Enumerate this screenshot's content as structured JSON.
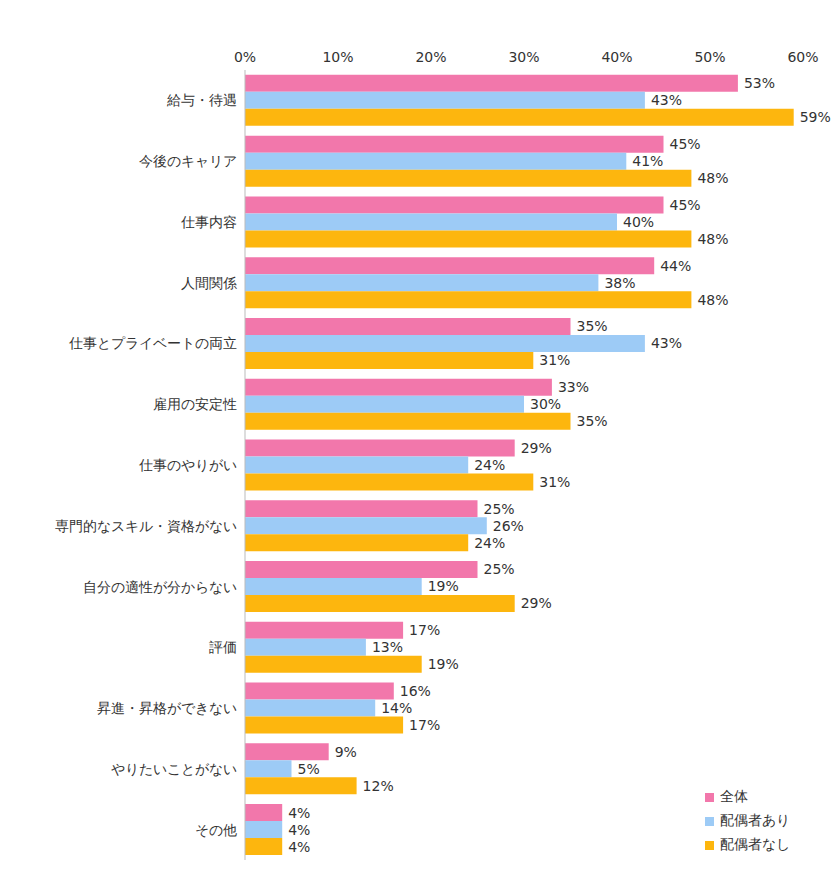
{
  "chart_data": {
    "type": "bar",
    "orientation": "horizontal",
    "categories": [
      "給与・待遇",
      "今後のキャリア",
      "仕事内容",
      "人間関係",
      "仕事とプライベートの両立",
      "雇用の安定性",
      "仕事のやりがい",
      "専門的なスキル・資格がない",
      "自分の適性が分からない",
      "評価",
      "昇進・昇格ができない",
      "やりたいことがない",
      "その他"
    ],
    "series": [
      {
        "name": "全体",
        "color": "#F277AB",
        "values": [
          53,
          45,
          45,
          44,
          35,
          33,
          29,
          25,
          25,
          17,
          16,
          9,
          4
        ],
        "value_labels": [
          "53%",
          "45%",
          "45%",
          "44%",
          "35%",
          "33%",
          "29%",
          "25%",
          "25%",
          "17%",
          "16%",
          "9%",
          "4%"
        ]
      },
      {
        "name": "配偶者あり",
        "color": "#9DCBF6",
        "values": [
          43,
          41,
          40,
          38,
          43,
          30,
          24,
          26,
          19,
          13,
          14,
          5,
          4
        ],
        "value_labels": [
          "43%",
          "41%",
          "40%",
          "38%",
          "43%",
          "30%",
          "24%",
          "26%",
          "19%",
          "13%",
          "14%",
          "5%",
          "4%"
        ]
      },
      {
        "name": "配偶者なし",
        "color": "#FDB60E",
        "values": [
          59,
          48,
          48,
          48,
          31,
          35,
          31,
          24,
          29,
          19,
          17,
          12,
          4
        ],
        "value_labels": [
          "59%",
          "48%",
          "48%",
          "48%",
          "31%",
          "35%",
          "31%",
          "24%",
          "29%",
          "19%",
          "17%",
          "12%",
          "4%"
        ]
      }
    ],
    "xlim": [
      0,
      60
    ],
    "xticks": [
      {
        "value": 0,
        "label": "0%"
      },
      {
        "value": 10,
        "label": "10%"
      },
      {
        "value": 20,
        "label": "20%"
      },
      {
        "value": 30,
        "label": "30%"
      },
      {
        "value": 40,
        "label": "40%"
      },
      {
        "value": 50,
        "label": "50%"
      },
      {
        "value": 60,
        "label": "60%"
      }
    ],
    "grid": false,
    "data_labels": true,
    "legend": "lower right"
  }
}
